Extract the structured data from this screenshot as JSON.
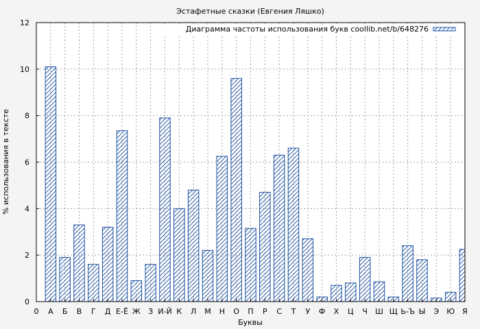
{
  "chart_data": {
    "type": "bar",
    "title": "Эстафетные сказки (Евгения Ляшко)",
    "xlabel": "Буквы",
    "ylabel": "% использования в тексте",
    "legend": "Диаграмма частоты использования букв coollib.net/b/648276",
    "legend_position": "top-right",
    "grid": true,
    "ylim": [
      0,
      12
    ],
    "yticks": [
      0,
      2,
      4,
      6,
      8,
      10,
      12
    ],
    "x_origin_label": "0",
    "categories": [
      "А",
      "Б",
      "В",
      "Г",
      "Д",
      "Е-Ё",
      "Ж",
      "З",
      "И-Й",
      "К",
      "Л",
      "М",
      "Н",
      "О",
      "П",
      "Р",
      "С",
      "Т",
      "У",
      "Ф",
      "Х",
      "Ц",
      "Ч",
      "Ш",
      "Щ",
      "Ь-Ъ",
      "Ы",
      "Э",
      "Ю",
      "Я"
    ],
    "values": [
      10.1,
      1.9,
      3.3,
      1.6,
      3.2,
      7.35,
      0.9,
      1.6,
      7.9,
      4.0,
      4.8,
      2.2,
      6.25,
      9.6,
      3.15,
      4.7,
      6.3,
      6.6,
      2.7,
      0.2,
      0.7,
      0.8,
      1.9,
      0.85,
      0.2,
      2.4,
      1.8,
      0.15,
      0.4,
      2.25
    ],
    "bar_color": "#1a4fa0"
  }
}
